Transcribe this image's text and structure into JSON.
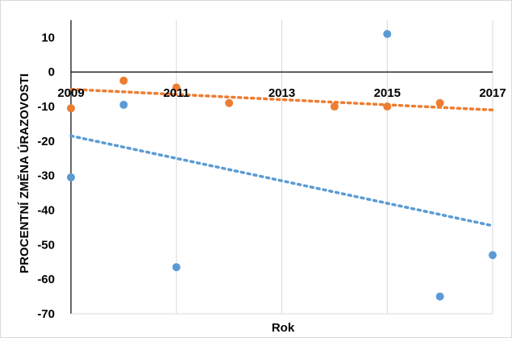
{
  "chart_data": {
    "type": "scatter",
    "title": "",
    "xlabel": "Rok",
    "ylabel": "PROCENTNÍ ZMĚNA ÚRAZOVOSTI",
    "xlim": [
      2009,
      2017
    ],
    "ylim": [
      -70,
      15
    ],
    "x_ticks": [
      2009,
      2011,
      2013,
      2015,
      2017
    ],
    "x_tick_labels": [
      "2009",
      "2011",
      "2013",
      "2015",
      "2017"
    ],
    "y_ticks": [
      10,
      0,
      -10,
      -20,
      -30,
      -40,
      -50,
      -60,
      -70
    ],
    "y_tick_labels": [
      "10",
      "0",
      "-10",
      "-20",
      "-30",
      "-40",
      "-50",
      "-60",
      "-70"
    ],
    "grid": "vertical",
    "legend": "none",
    "series": [
      {
        "color": "#5b9bd5",
        "x": [
          2009,
          2010,
          2011,
          2012,
          2013,
          2014,
          2015,
          2016,
          2017
        ],
        "y": [
          -30.5,
          -9.5,
          -56.5,
          null,
          null,
          null,
          11,
          -65,
          -53
        ],
        "trendline": {
          "type": "linear",
          "from": [
            2009,
            -18.5
          ],
          "to": [
            2017,
            -44.5
          ]
        }
      },
      {
        "color": "#ed7d31",
        "x": [
          2009,
          2010,
          2011,
          2012,
          2013,
          2014,
          2015,
          2016,
          2017
        ],
        "y": [
          -10.5,
          -2.5,
          -4.5,
          -9,
          null,
          -10,
          -10,
          -9,
          null
        ],
        "trendline": {
          "type": "linear",
          "from": [
            2009,
            -5
          ],
          "to": [
            2017,
            -11
          ]
        }
      }
    ]
  }
}
